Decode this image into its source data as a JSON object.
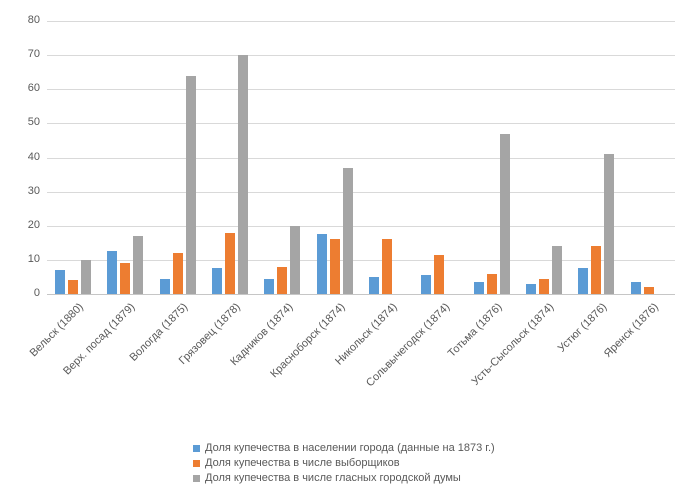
{
  "chart_data": {
    "type": "bar",
    "title": "",
    "xlabel": "",
    "ylabel": "",
    "ylim": [
      0,
      80
    ],
    "yticks": [
      0,
      10,
      20,
      30,
      40,
      50,
      60,
      70,
      80
    ],
    "grid": true,
    "legend_position": "bottom",
    "categories": [
      "Вельск (1880)",
      "Верх. посад (1879)",
      "Вологда (1875)",
      "Грязовец (1878)",
      "Кадников (1874)",
      "Красноборск (1874)",
      "Никольск (1874)",
      "Сольвычегодск (1874)",
      "Тотьма (1876)",
      "Усть-Сысольск (1874)",
      "Устюг (1876)",
      "Яренск (1876)"
    ],
    "series": [
      {
        "name": "Доля купечества в населении города (данные на 1873 г.)",
        "color": "#5b9bd5",
        "values": [
          7,
          12.5,
          4.5,
          7.5,
          4.5,
          17.5,
          5,
          5.5,
          3.5,
          3,
          7.5,
          3.5
        ]
      },
      {
        "name": "Доля купечества в числе выборщиков",
        "color": "#ed7d31",
        "values": [
          4,
          9,
          12,
          18,
          8,
          16,
          16,
          11.5,
          6,
          4.5,
          14,
          2
        ]
      },
      {
        "name": "Доля купечества в числе гласных городской думы",
        "color": "#a5a5a5",
        "values": [
          10,
          17,
          64,
          70,
          20,
          37,
          0,
          0,
          47,
          14,
          41,
          0
        ]
      }
    ],
    "colors": {
      "text": "#595959",
      "gridline": "#d9d9d9",
      "background": "#ffffff"
    }
  }
}
